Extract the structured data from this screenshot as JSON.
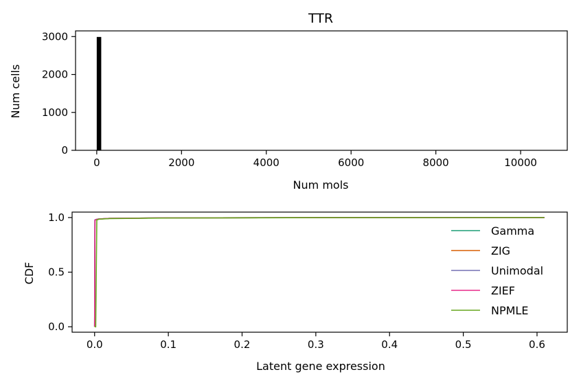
{
  "chart_data": [
    {
      "type": "bar",
      "title": "TTR",
      "xlabel": "Num mols",
      "ylabel": "Num cells",
      "xlim": [
        -500,
        11100
      ],
      "ylim": [
        0,
        3150
      ],
      "xticks": [
        0,
        2000,
        4000,
        6000,
        8000,
        10000
      ],
      "yticks": [
        0,
        1000,
        2000,
        3000
      ],
      "bars": [
        {
          "x0": 0,
          "x1": 106,
          "value": 2990
        },
        {
          "x0": 106,
          "x1": 212,
          "value": 6
        },
        {
          "x0": 212,
          "x1": 318,
          "value": 2
        },
        {
          "x0": 318,
          "x1": 424,
          "value": 1
        }
      ],
      "bar_color": "#000000",
      "grid": false
    },
    {
      "type": "line",
      "title": "",
      "xlabel": "Latent gene expression",
      "ylabel": "CDF",
      "xlim": [
        -0.0305,
        0.641
      ],
      "ylim": [
        -0.05,
        1.05
      ],
      "xticks": [
        0.0,
        0.1,
        0.2,
        0.3,
        0.4,
        0.5,
        0.6
      ],
      "xtick_labels": [
        "0.0",
        "0.1",
        "0.2",
        "0.3",
        "0.4",
        "0.5",
        "0.6"
      ],
      "yticks": [
        0.0,
        0.5,
        1.0
      ],
      "ytick_labels": [
        "0.0",
        "0.5",
        "1.0"
      ],
      "legend_position": "right",
      "grid": false,
      "series": [
        {
          "name": "Gamma",
          "color": "#1b9e77",
          "x": [
            0,
            0.0005,
            0.002,
            0.005,
            0.02,
            0.1,
            0.3,
            0.61
          ],
          "y": [
            0,
            0.975,
            0.982,
            0.986,
            0.992,
            0.997,
            0.999,
            1.0
          ]
        },
        {
          "name": "ZIG",
          "color": "#d95f02",
          "x": [
            0,
            0.0005,
            0.002,
            0.005,
            0.02,
            0.1,
            0.3,
            0.61
          ],
          "y": [
            0,
            0.975,
            0.982,
            0.986,
            0.992,
            0.997,
            0.999,
            1.0
          ]
        },
        {
          "name": "Unimodal",
          "color": "#7570b3",
          "x": [
            0,
            0.0003,
            0.002,
            0.005,
            0.02,
            0.1,
            0.3,
            0.61
          ],
          "y": [
            0,
            0.978,
            0.983,
            0.987,
            0.992,
            0.997,
            0.999,
            1.0
          ]
        },
        {
          "name": "ZIEF",
          "color": "#e7298a",
          "x": [
            0,
            0.0005,
            0.002,
            0.005,
            0.02,
            0.1,
            0.3,
            0.61
          ],
          "y": [
            0,
            0.975,
            0.982,
            0.986,
            0.992,
            0.997,
            0.999,
            1.0
          ]
        },
        {
          "name": "NPMLE",
          "color": "#66a61e",
          "x": [
            0,
            0.0015,
            0.003,
            0.006,
            0.02,
            0.1,
            0.3,
            0.61
          ],
          "y": [
            0,
            0.0,
            0.978,
            0.985,
            0.991,
            0.996,
            0.999,
            1.0
          ]
        }
      ]
    }
  ]
}
